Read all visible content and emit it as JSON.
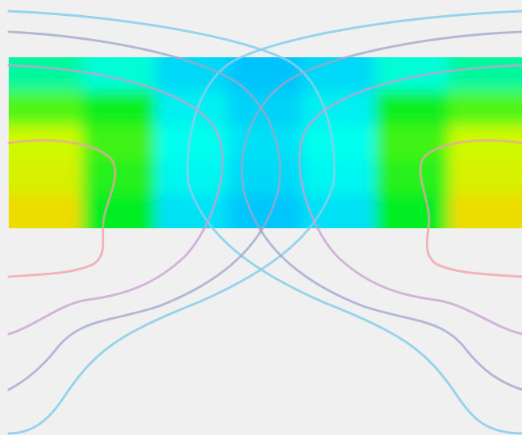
{
  "chart_data": {
    "type": "heatmap",
    "title": "",
    "xlabel": "",
    "ylabel": "",
    "grid": false,
    "legend": "none",
    "colormap": [
      "#00b4ff",
      "#00ffee",
      "#00ee22",
      "#c8ff00",
      "#ffcc00"
    ],
    "value_range": [
      0,
      1
    ],
    "x_values": [
      -1.0,
      -0.6,
      -0.3,
      0.0,
      0.3,
      0.6,
      1.0
    ],
    "y_values": [
      1.0,
      0.5,
      0.0,
      -0.5,
      -1.0
    ],
    "values": [
      [
        0.35,
        0.28,
        0.12,
        0.05,
        0.12,
        0.28,
        0.35
      ],
      [
        0.6,
        0.52,
        0.2,
        0.1,
        0.2,
        0.52,
        0.6
      ],
      [
        0.78,
        0.58,
        0.25,
        0.15,
        0.25,
        0.58,
        0.78
      ],
      [
        0.82,
        0.55,
        0.22,
        0.12,
        0.22,
        0.55,
        0.82
      ],
      [
        0.92,
        0.5,
        0.15,
        0.06,
        0.15,
        0.5,
        0.92
      ]
    ],
    "contours": [
      {
        "level": 0.2,
        "color": "#87ceeb",
        "opacity": 0.85
      },
      {
        "level": 0.4,
        "color": "#9da6cc",
        "opacity": 0.75
      },
      {
        "level": 0.6,
        "color": "#c8a0d2",
        "opacity": 0.75
      },
      {
        "level": 0.8,
        "color": "#f0a0a8",
        "opacity": 0.75
      }
    ]
  }
}
